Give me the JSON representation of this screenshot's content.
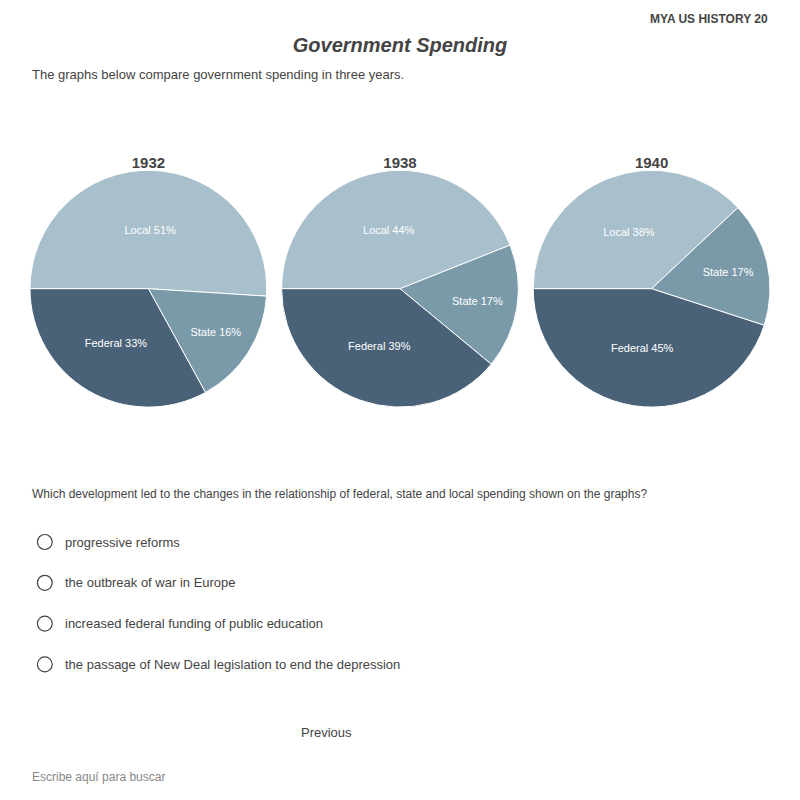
{
  "title": "Government Spending",
  "subtitle": "The graphs below compare government spending in three years.",
  "annotations": [
    "MYA US HISTORY 20",
    "Which development led to the changes in the relationship of federal, state and local spending shown on the graphs?",
    "progressive reforms",
    "the outbreak of war in Europe",
    "increased federal funding of public education",
    "the passage of New Deal legislation to end the depression",
    "Previous",
    "Escribe aquí para buscar"
  ],
  "chart_data": [
    {
      "type": "pie",
      "title": "1932",
      "categories": [
        "Local",
        "State",
        "Federal"
      ],
      "values": [
        51,
        16,
        33
      ],
      "value_labels": [
        "Local 51%",
        "State 16%",
        "Federal 33%"
      ],
      "colors": [
        "#a8bfcc",
        "#7a9aaa",
        "#4a6278"
      ],
      "data_labels": true
    },
    {
      "type": "pie",
      "title": "1938",
      "categories": [
        "Local",
        "State",
        "Federal"
      ],
      "values": [
        44,
        17,
        39
      ],
      "value_labels": [
        "Local 44%",
        "State 17%",
        "Federal 39%"
      ],
      "colors": [
        "#a8bfcc",
        "#7a9aaa",
        "#4a6278"
      ],
      "data_labels": true
    },
    {
      "type": "pie",
      "title": "1940",
      "categories": [
        "Local",
        "State",
        "Federal"
      ],
      "values": [
        38,
        17,
        45
      ],
      "value_labels": [
        "Local 38%",
        "State 17%",
        "Federal 45%"
      ],
      "colors": [
        "#a8bfcc",
        "#7a9aaa",
        "#4a6278"
      ],
      "data_labels": true
    }
  ]
}
